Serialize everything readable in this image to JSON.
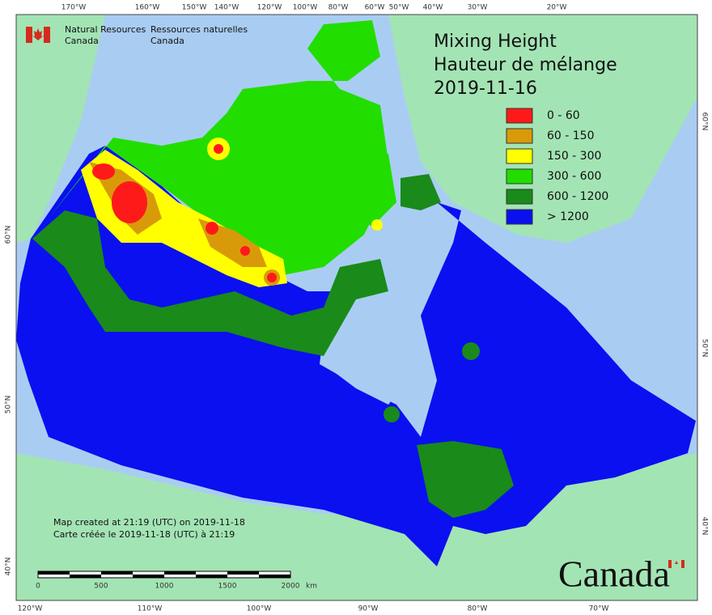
{
  "header": {
    "agency_en": [
      "Natural Resources",
      "Canada"
    ],
    "agency_fr": [
      "Ressources naturelles",
      "Canada"
    ]
  },
  "title": [
    "Mixing Height",
    "Hauteur de mélange",
    "2019-11-16"
  ],
  "legend": [
    {
      "label": "0 - 60",
      "color": "#ff1a1a"
    },
    {
      "label": "60 - 150",
      "color": "#d99a0a"
    },
    {
      "label": "150 - 300",
      "color": "#ffff00"
    },
    {
      "label": "300 - 600",
      "color": "#22dd00"
    },
    {
      "label": "600 - 1200",
      "color": "#1a8a1a"
    },
    {
      "label": "> 1200",
      "color": "#0a10f0"
    }
  ],
  "graticule": {
    "top": [
      "170°W",
      "160°W",
      "150°W",
      "140°W",
      "120°W",
      "100°W",
      "80°W",
      "60°W",
      "50°W",
      "40°W",
      "30°W",
      "20°W"
    ],
    "bottom": [
      "120°W",
      "110°W",
      "100°W",
      "90°W",
      "80°W",
      "70°W"
    ],
    "left": [
      "60°N",
      "50°N",
      "40°N"
    ],
    "right": [
      "60°N",
      "50°N",
      "40°N"
    ]
  },
  "credits": [
    "Map created at 21:19 (UTC) on 2019-11-18",
    "Carte créée le 2019-11-18 (UTC) à 21:19"
  ],
  "scale_bar": {
    "labels": [
      "0",
      "500",
      "1000",
      "1500",
      "2000"
    ],
    "unit": "km"
  },
  "wordmark": "Canada"
}
